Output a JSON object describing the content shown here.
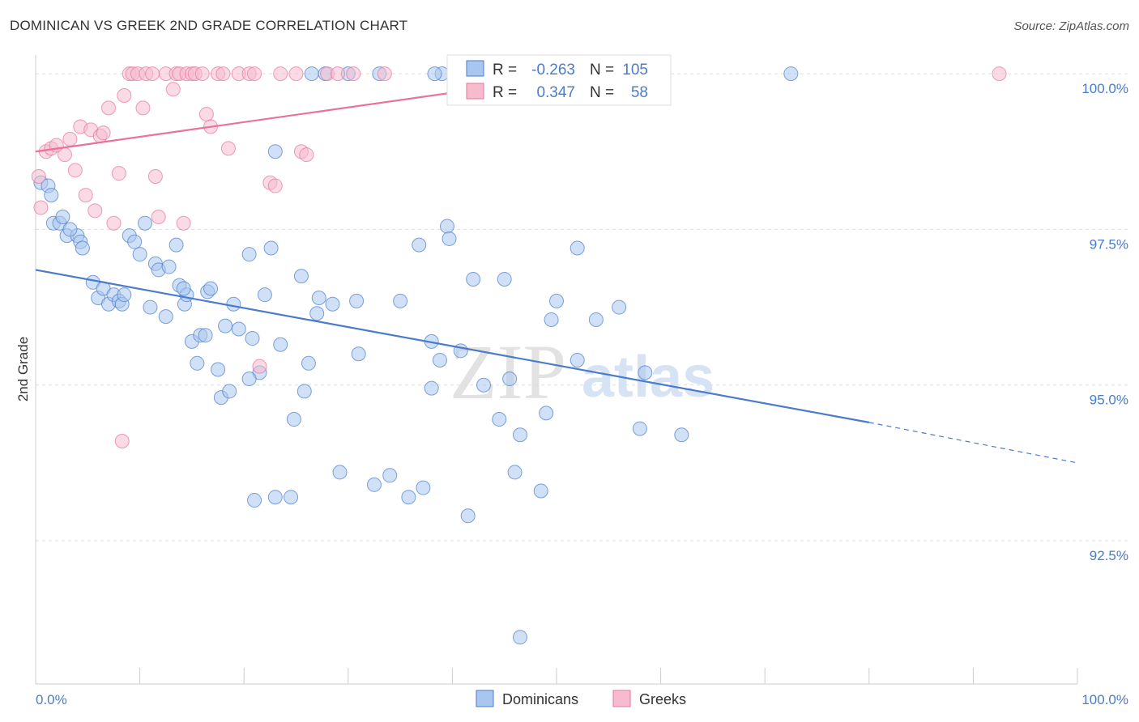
{
  "title": "DOMINICAN VS GREEK 2ND GRADE CORRELATION CHART",
  "source": "Source: ZipAtlas.com",
  "chart_data": {
    "type": "scatter",
    "title": "DOMINICAN VS GREEK 2ND GRADE CORRELATION CHART",
    "xlabel": "",
    "ylabel": "2nd Grade",
    "xlim": [
      0,
      100
    ],
    "ylim": [
      90.2,
      100.3
    ],
    "x_tick_labels": [
      "0.0%",
      "100.0%"
    ],
    "y_ticks": [
      92.5,
      95.0,
      97.5,
      100.0
    ],
    "y_tick_labels": [
      "92.5%",
      "95.0%",
      "97.5%",
      "100.0%"
    ],
    "grid": true,
    "legend_position": "top-center",
    "watermark": {
      "zip": "ZIP",
      "atlas": "atlas"
    },
    "stats": [
      {
        "r_label": "R =",
        "r": "-0.263",
        "n_label": "N =",
        "n": "105"
      },
      {
        "r_label": "R =",
        "r": "0.347",
        "n_label": "N =",
        "n": "58"
      }
    ],
    "series": [
      {
        "name": "Dominicans",
        "color": "#4a7cc9",
        "fill": "#a9c6ee",
        "trend": {
          "x0": 0,
          "y0": 96.85,
          "x1": 80,
          "y1": 94.4,
          "dash_to_x": 100,
          "dash_to_y": 93.75
        },
        "points": [
          [
            0.5,
            98.25
          ],
          [
            1.2,
            98.2
          ],
          [
            1.5,
            98.05
          ],
          [
            1.7,
            97.6
          ],
          [
            2.3,
            97.6
          ],
          [
            2.6,
            97.7
          ],
          [
            3,
            97.4
          ],
          [
            4,
            97.4
          ],
          [
            4.3,
            97.3
          ],
          [
            4.5,
            97.2
          ],
          [
            5.5,
            96.65
          ],
          [
            6,
            96.4
          ],
          [
            6.5,
            96.55
          ],
          [
            7,
            96.3
          ],
          [
            7.5,
            96.45
          ],
          [
            8,
            96.35
          ],
          [
            8.3,
            96.3
          ],
          [
            9,
            97.4
          ],
          [
            9.5,
            97.3
          ],
          [
            10,
            97.1
          ],
          [
            10.5,
            97.6
          ],
          [
            11,
            96.25
          ],
          [
            11.5,
            96.95
          ],
          [
            11.8,
            96.85
          ],
          [
            12.5,
            96.1
          ],
          [
            12.8,
            96.9
          ],
          [
            13.5,
            97.25
          ],
          [
            13.8,
            96.6
          ],
          [
            14.3,
            96.3
          ],
          [
            14.5,
            96.45
          ],
          [
            15,
            95.7
          ],
          [
            15.5,
            95.35
          ],
          [
            15.8,
            95.8
          ],
          [
            16.3,
            95.8
          ],
          [
            16.5,
            96.5
          ],
          [
            16.8,
            96.55
          ],
          [
            17.5,
            95.25
          ],
          [
            17.8,
            94.8
          ],
          [
            18.2,
            95.95
          ],
          [
            18.6,
            94.9
          ],
          [
            19,
            96.3
          ],
          [
            19.5,
            95.9
          ],
          [
            20.5,
            97.1
          ],
          [
            20.8,
            95.75
          ],
          [
            21,
            93.15
          ],
          [
            21.5,
            95.2
          ],
          [
            22,
            96.45
          ],
          [
            22.6,
            97.2
          ],
          [
            23,
            98.75
          ],
          [
            23,
            93.2
          ],
          [
            23.5,
            95.65
          ],
          [
            24.5,
            93.2
          ],
          [
            24.8,
            94.45
          ],
          [
            25.5,
            96.75
          ],
          [
            25.8,
            94.9
          ],
          [
            26.2,
            95.35
          ],
          [
            26.5,
            100
          ],
          [
            27,
            96.15
          ],
          [
            27.2,
            96.4
          ],
          [
            27.8,
            100
          ],
          [
            28.5,
            96.3
          ],
          [
            29.2,
            93.6
          ],
          [
            30,
            100
          ],
          [
            30.8,
            96.35
          ],
          [
            31,
            95.5
          ],
          [
            32.5,
            93.4
          ],
          [
            33,
            100
          ],
          [
            34,
            93.55
          ],
          [
            35,
            96.35
          ],
          [
            35.8,
            93.2
          ],
          [
            36.8,
            97.25
          ],
          [
            37.2,
            93.35
          ],
          [
            38,
            95.7
          ],
          [
            38,
            94.95
          ],
          [
            38.8,
            95.4
          ],
          [
            39,
            100
          ],
          [
            39.5,
            97.55
          ],
          [
            39.7,
            97.35
          ],
          [
            40.8,
            95.55
          ],
          [
            41.5,
            92.9
          ],
          [
            42,
            96.7
          ],
          [
            43,
            95.0
          ],
          [
            44.5,
            94.45
          ],
          [
            45,
            96.7
          ],
          [
            45.5,
            95.1
          ],
          [
            46,
            93.6
          ],
          [
            46.5,
            94.2
          ],
          [
            46.5,
            90.95
          ],
          [
            48.5,
            93.3
          ],
          [
            49,
            94.55
          ],
          [
            49.5,
            96.05
          ],
          [
            50,
            96.35
          ],
          [
            52,
            95.4
          ],
          [
            53.8,
            96.05
          ],
          [
            56,
            96.25
          ],
          [
            58,
            94.3
          ],
          [
            58.5,
            95.2
          ],
          [
            62,
            94.2
          ],
          [
            72.5,
            100
          ],
          [
            52,
            97.2
          ],
          [
            14.2,
            96.55
          ],
          [
            8.5,
            96.45
          ],
          [
            3.3,
            97.5
          ],
          [
            20.5,
            95.1
          ],
          [
            38.3,
            100
          ]
        ]
      },
      {
        "name": "Greeks",
        "color": "#e8739a",
        "fill": "#f6bccd",
        "trend": {
          "x0": 0,
          "y0": 98.75,
          "x1": 55,
          "y1": 100.05
        },
        "points": [
          [
            0.3,
            98.35
          ],
          [
            0.5,
            97.85
          ],
          [
            1,
            98.75
          ],
          [
            1.5,
            98.8
          ],
          [
            2,
            98.85
          ],
          [
            2.8,
            98.7
          ],
          [
            3.3,
            98.95
          ],
          [
            3.8,
            98.45
          ],
          [
            4.3,
            99.15
          ],
          [
            4.8,
            98.05
          ],
          [
            5.3,
            99.1
          ],
          [
            5.7,
            97.8
          ],
          [
            6.2,
            99.0
          ],
          [
            6.5,
            99.05
          ],
          [
            7,
            99.45
          ],
          [
            7.5,
            97.6
          ],
          [
            8,
            98.4
          ],
          [
            8.3,
            94.1
          ],
          [
            8.5,
            99.65
          ],
          [
            9,
            100
          ],
          [
            9.3,
            100
          ],
          [
            9.8,
            100
          ],
          [
            10.3,
            99.45
          ],
          [
            10.6,
            100
          ],
          [
            11.2,
            100
          ],
          [
            11.5,
            98.35
          ],
          [
            11.8,
            97.7
          ],
          [
            12.5,
            100
          ],
          [
            13.2,
            99.75
          ],
          [
            13.5,
            100
          ],
          [
            13.8,
            100
          ],
          [
            14.2,
            97.6
          ],
          [
            14.5,
            100
          ],
          [
            15,
            100
          ],
          [
            15.3,
            100
          ],
          [
            16,
            100
          ],
          [
            16.4,
            99.35
          ],
          [
            16.8,
            99.15
          ],
          [
            17.5,
            100
          ],
          [
            18,
            100
          ],
          [
            18.5,
            98.8
          ],
          [
            19.5,
            100
          ],
          [
            20.5,
            100
          ],
          [
            21,
            100
          ],
          [
            21.5,
            95.3
          ],
          [
            22.5,
            98.25
          ],
          [
            23,
            98.2
          ],
          [
            23.5,
            100
          ],
          [
            25,
            100
          ],
          [
            25.5,
            98.75
          ],
          [
            26,
            98.7
          ],
          [
            28,
            100
          ],
          [
            29,
            100
          ],
          [
            30.5,
            100
          ],
          [
            33.5,
            100
          ],
          [
            40.5,
            100
          ],
          [
            41,
            100
          ],
          [
            92.5,
            100
          ]
        ]
      }
    ]
  }
}
